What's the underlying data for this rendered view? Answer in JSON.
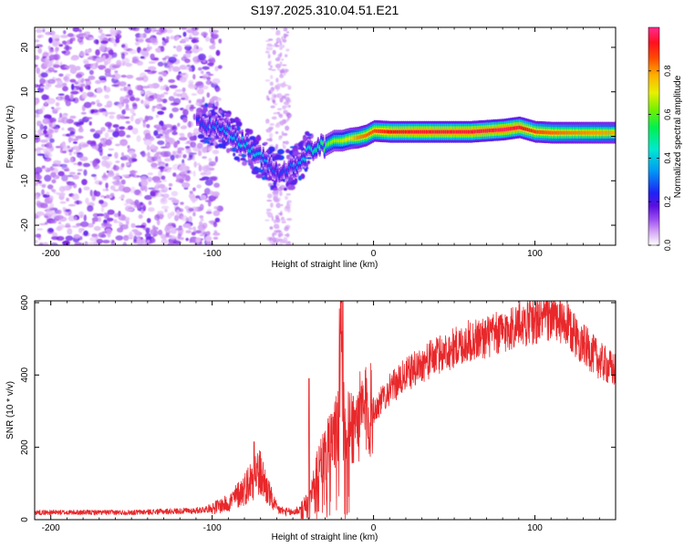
{
  "chart_data": [
    {
      "type": "heatmap",
      "title": "S197.2025.310.04.51.E21",
      "xlabel": "Height of straight line (km)",
      "ylabel": "Frequency (Hz)",
      "xlim": [
        -210,
        150
      ],
      "ylim": [
        -24.5,
        24.5
      ],
      "xticks": [
        -200,
        -100,
        0,
        100
      ],
      "xtick_labels": [
        "-200",
        "-100",
        "0",
        "100"
      ],
      "yticks": [
        -20,
        -10,
        0,
        10,
        20
      ],
      "ytick_labels": [
        "-20",
        "-10",
        "0",
        "10",
        "20"
      ],
      "colorbar": {
        "label": "Normalized spectral amplitude",
        "range": [
          0,
          1
        ],
        "ticks": [
          0.0,
          0.2,
          0.4,
          0.6,
          0.8
        ],
        "tick_labels": [
          "0.0",
          "0.2",
          "0.4",
          "0.6",
          "0.8"
        ],
        "colors": [
          "#f0d8fb",
          "#c080f0",
          "#7a1fe6",
          "#2a2cf5",
          "#00b8f0",
          "#00f07a",
          "#9ef000",
          "#f0e000",
          "#ff7a00",
          "#ff1010",
          "#ff30a0"
        ]
      },
      "ridge": {
        "x": [
          -110,
          -100,
          -90,
          -80,
          -70,
          -60,
          -50,
          -45,
          -40,
          -35,
          -30,
          -25,
          -20,
          -15,
          -10,
          -5,
          0,
          10,
          20,
          40,
          60,
          80,
          90,
          100,
          110,
          120,
          130,
          150
        ],
        "freq": [
          3,
          2.5,
          1,
          -2,
          -5,
          -8,
          -7,
          -5,
          -3,
          -2.5,
          -2,
          -1,
          -1,
          -0.5,
          -0.3,
          0.2,
          1.2,
          1,
          1,
          1,
          1,
          1.5,
          2,
          1,
          0.8,
          0.8,
          0.8,
          0.8
        ],
        "amplitude": [
          0.3,
          0.35,
          0.4,
          0.42,
          0.4,
          0.3,
          0.35,
          0.4,
          0.45,
          0.5,
          0.55,
          0.6,
          0.65,
          0.7,
          0.78,
          0.82,
          0.85,
          0.9,
          0.92,
          0.93,
          0.93,
          0.95,
          0.92,
          0.85,
          0.82,
          0.8,
          0.78,
          0.75
        ]
      },
      "noise_region_x": [
        -210,
        -95
      ]
    },
    {
      "type": "line",
      "xlabel": "Height of straight line (km)",
      "ylabel": "SNR (10 * v/v)",
      "xlim": [
        -210,
        150
      ],
      "ylim": [
        0,
        605
      ],
      "xticks": [
        -200,
        -100,
        0,
        100
      ],
      "xtick_labels": [
        "-200",
        "-100",
        "0",
        "100"
      ],
      "yticks": [
        0,
        200,
        400,
        600
      ],
      "ytick_labels": [
        "0",
        "200",
        "400",
        "600"
      ],
      "color": "#e8282b",
      "envelope": {
        "x": [
          -210,
          -150,
          -110,
          -100,
          -90,
          -80,
          -76,
          -73,
          -70,
          -67,
          -63,
          -60,
          -55,
          -50,
          -45,
          -40,
          -35,
          -30,
          -25,
          -22,
          -20,
          -19,
          -18,
          -15,
          -10,
          -5,
          0,
          5,
          10,
          20,
          30,
          40,
          50,
          60,
          70,
          80,
          90,
          100,
          110,
          120,
          130,
          140,
          150
        ],
        "y": [
          20,
          20,
          25,
          32,
          45,
          85,
          110,
          130,
          125,
          95,
          55,
          30,
          22,
          20,
          30,
          60,
          130,
          180,
          220,
          260,
          600,
          300,
          240,
          250,
          275,
          300,
          300,
          330,
          360,
          400,
          430,
          455,
          475,
          495,
          505,
          518,
          540,
          550,
          560,
          535,
          485,
          440,
          410
        ]
      },
      "spikes": [
        {
          "x": -19,
          "y": 605
        },
        {
          "x": -40,
          "y": 390
        },
        {
          "x": -74,
          "y": 215
        }
      ]
    }
  ]
}
